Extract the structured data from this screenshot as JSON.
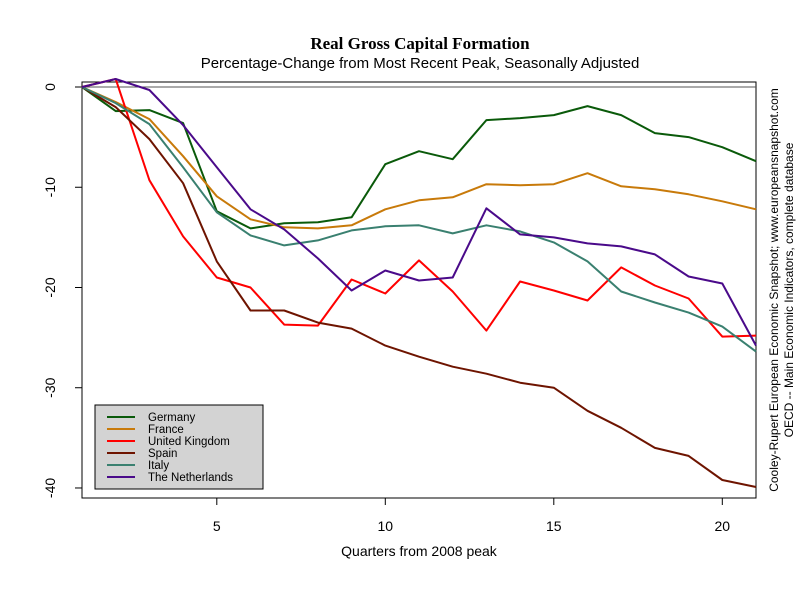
{
  "chart_data": {
    "type": "line",
    "title": "Real Gross Capital Formation",
    "subtitle": "Percentage-Change from Most Recent Peak, Seasonally Adjusted",
    "xlabel": "Quarters from 2008 peak",
    "ylabel": "",
    "xlim": [
      1,
      21
    ],
    "ylim": [
      -41,
      0.5
    ],
    "x_ticks": [
      5,
      10,
      15,
      20
    ],
    "y_ticks": [
      0,
      -10,
      -20,
      -30,
      -40
    ],
    "zero_line": true,
    "grid": false,
    "legend_position": "bottom-left",
    "x": [
      1,
      2,
      3,
      4,
      5,
      6,
      7,
      8,
      9,
      10,
      11,
      12,
      13,
      14,
      15,
      16,
      17,
      18,
      19,
      20,
      21
    ],
    "series": [
      {
        "name": "Germany",
        "color": "#0a5a0a",
        "values": [
          0,
          -2.4,
          -2.3,
          -3.6,
          -12.4,
          -14.1,
          -13.6,
          -13.5,
          -13.0,
          -7.7,
          -6.4,
          -7.2,
          -3.3,
          -3.1,
          -2.8,
          -1.9,
          -2.8,
          -4.6,
          -5.0,
          -6.0,
          -7.4
        ]
      },
      {
        "name": "France",
        "color": "#c87a0a",
        "values": [
          0,
          -1.5,
          -3.2,
          -6.9,
          -10.9,
          -13.2,
          -14.0,
          -14.1,
          -13.8,
          -12.2,
          -11.3,
          -11.0,
          -9.7,
          -9.8,
          -9.7,
          -8.6,
          -9.9,
          -10.2,
          -10.7,
          -11.4,
          -12.2
        ]
      },
      {
        "name": "United Kingdom",
        "color": "#ff0000",
        "values": [
          0,
          0.8,
          -9.3,
          -14.9,
          -19.0,
          -20.0,
          -23.7,
          -23.8,
          -19.2,
          -20.6,
          -17.3,
          -20.4,
          -24.3,
          -19.4,
          -20.3,
          -21.3,
          -18.0,
          -19.8,
          -21.1,
          -24.9,
          -24.8
        ]
      },
      {
        "name": "Spain",
        "color": "#6e1400",
        "values": [
          0,
          -2.0,
          -5.2,
          -9.6,
          -17.4,
          -22.3,
          -22.3,
          -23.5,
          -24.1,
          -25.8,
          -26.9,
          -27.9,
          -28.6,
          -29.5,
          -30.0,
          -32.3,
          -34.0,
          -36.0,
          -36.8,
          -39.2,
          -39.9
        ]
      },
      {
        "name": "Italy",
        "color": "#3a8070",
        "values": [
          0,
          -1.6,
          -3.7,
          -8.0,
          -12.5,
          -14.8,
          -15.8,
          -15.3,
          -14.3,
          -13.9,
          -13.8,
          -14.6,
          -13.8,
          -14.4,
          -15.5,
          -17.4,
          -20.4,
          -21.5,
          -22.5,
          -23.9,
          -26.4
        ]
      },
      {
        "name": "The Netherlands",
        "color": "#4a0a8a",
        "values": [
          0,
          0.8,
          -0.3,
          -3.8,
          -8.0,
          -12.2,
          -14.2,
          -17.1,
          -20.3,
          -18.3,
          -19.3,
          -19.0,
          -12.1,
          -14.7,
          -15.0,
          -15.6,
          -15.9,
          -16.7,
          -18.9,
          -19.6,
          -25.8
        ]
      }
    ],
    "side_note_lines": [
      "Cooley-Rupert European Economic Snapshot; www.europeansnapshot.com",
      "OECD -- Main Economic Indicators, complete database"
    ]
  }
}
